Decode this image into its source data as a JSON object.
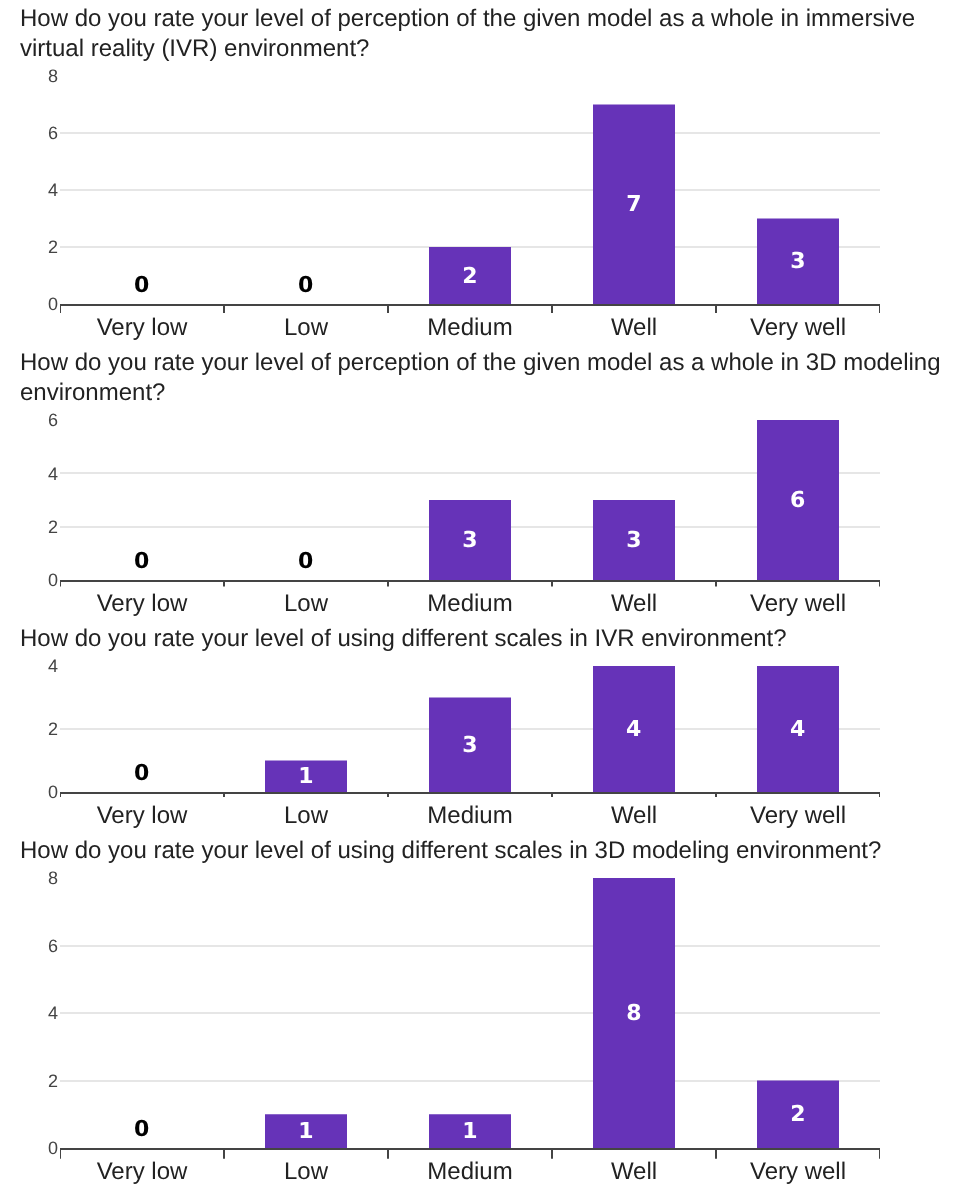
{
  "chart_data": [
    {
      "type": "bar",
      "title": "How do you rate your level of perception of the given model as a whole in immersive virtual reality (IVR) environment?",
      "categories": [
        "Very low",
        "Low",
        "Medium",
        "Well",
        "Very well"
      ],
      "values": [
        0,
        0,
        2,
        7,
        3
      ],
      "color": "#6633b8",
      "ylim": [
        0,
        8
      ],
      "yticks": [
        0,
        2,
        4,
        6,
        8
      ],
      "grid": "y",
      "data_labels": true,
      "legend": false
    },
    {
      "type": "bar",
      "title": "How do you rate your level of perception of the given model as a whole in 3D modeling environment?",
      "categories": [
        "Very low",
        "Low",
        "Medium",
        "Well",
        "Very well"
      ],
      "values": [
        0,
        0,
        3,
        3,
        6
      ],
      "color": "#6633b8",
      "ylim": [
        0,
        6
      ],
      "yticks": [
        0,
        2,
        4,
        6
      ],
      "grid": "y",
      "data_labels": true,
      "legend": false
    },
    {
      "type": "bar",
      "title": "How do you rate your level of using different scales in IVR environment?",
      "categories": [
        "Very low",
        "Low",
        "Medium",
        "Well",
        "Very well"
      ],
      "values": [
        0,
        1,
        3,
        4,
        4
      ],
      "color": "#6633b8",
      "ylim": [
        0,
        4
      ],
      "yticks": [
        0,
        2,
        4
      ],
      "grid": "y",
      "data_labels": true,
      "legend": false
    },
    {
      "type": "bar",
      "title": "How do you rate your level of using different scales in 3D modeling environment?",
      "categories": [
        "Very low",
        "Low",
        "Medium",
        "Well",
        "Very well"
      ],
      "values": [
        0,
        1,
        1,
        8,
        2
      ],
      "color": "#6633b8",
      "ylim": [
        0,
        8
      ],
      "yticks": [
        0,
        2,
        4,
        6,
        8
      ],
      "grid": "y",
      "data_labels": true,
      "legend": false
    }
  ]
}
